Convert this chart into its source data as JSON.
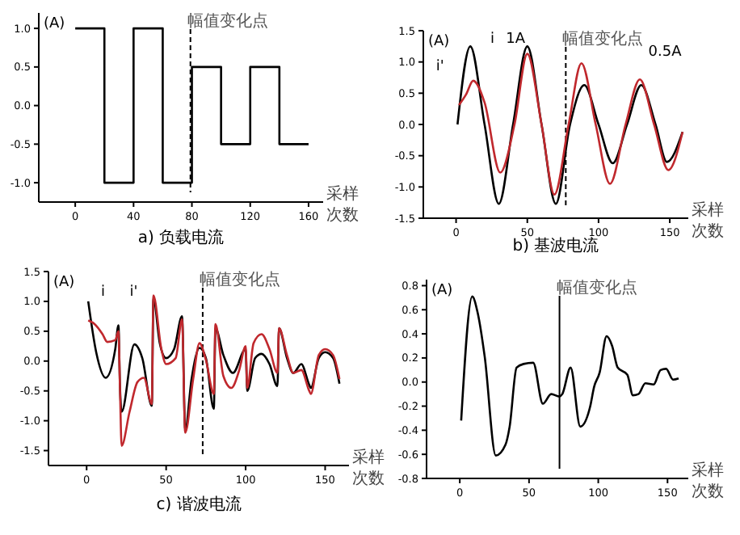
{
  "chart_data": [
    {
      "type": "step",
      "title": "a) 负载电流",
      "xlabel": "采样次数",
      "ylabel": "(A)",
      "xlim": [
        -25,
        170
      ],
      "ylim": [
        -1.25,
        1.2
      ],
      "xticks": [
        0,
        40,
        80,
        120,
        160
      ],
      "yticks": [
        {
          "value": 1,
          "label": "1.0"
        },
        {
          "value": 0.5,
          "label": "0.5"
        },
        {
          "value": 0,
          "label": "0.0"
        },
        {
          "value": -0.5,
          "label": "-0.5"
        },
        {
          "value": -1,
          "label": "-1.0"
        }
      ],
      "grid": false,
      "x": [
        0,
        20,
        40,
        60,
        80,
        100,
        120,
        140,
        160
      ],
      "series": [
        {
          "color": "#000000",
          "values": [
            1,
            -1,
            1,
            -1,
            0.5,
            -0.5,
            0.5,
            -0.5,
            -0.5
          ]
        }
      ],
      "ref_lines": [
        {
          "axis": "x",
          "value": 79,
          "label": "幅值变化点",
          "line_style": "dashed",
          "color": "#000000"
        }
      ]
    },
    {
      "type": "line",
      "title": "b) 基波电流",
      "xlabel": "采样次数",
      "ylabel": "(A)",
      "xlim": [
        -23,
        163
      ],
      "ylim": [
        -1.5,
        1.5
      ],
      "xticks": [
        0,
        50,
        100,
        150
      ],
      "yticks": [
        {
          "value": 1.5,
          "label": "1.5"
        },
        {
          "value": 1,
          "label": "1.0"
        },
        {
          "value": 0.5,
          "label": "0.5"
        },
        {
          "value": 0,
          "label": "0.0"
        },
        {
          "value": -0.5,
          "label": "-0.5"
        },
        {
          "value": -1,
          "label": "-1.0"
        },
        {
          "value": -1.5,
          "label": "-1.5"
        }
      ],
      "grid": false,
      "series": [
        {
          "color": "#000000",
          "x": [
            1,
            10,
            20,
            30,
            40,
            50,
            60,
            70,
            80,
            90,
            100,
            110,
            120,
            130,
            140,
            148,
            159
          ],
          "values": [
            0,
            1.25,
            0,
            -1.27,
            0,
            1.25,
            0,
            -1.27,
            0,
            0.63,
            0,
            -0.62,
            0,
            0.63,
            0,
            -0.6,
            -0.12
          ]
        },
        {
          "color": "#c0282d",
          "x": [
            2,
            7,
            12,
            20,
            31,
            41,
            50,
            60,
            69,
            79,
            88,
            98,
            108,
            119,
            129,
            139,
            149,
            159
          ],
          "values": [
            0.31,
            0.48,
            0.7,
            0.35,
            -0.77,
            0,
            1.13,
            0,
            -1.12,
            0,
            0.98,
            0,
            -0.95,
            0,
            0.72,
            0,
            -0.73,
            -0.12
          ]
        }
      ],
      "annotations": [
        "i",
        "1A",
        "0.5A",
        "i'"
      ],
      "ref_lines": [
        {
          "axis": "x",
          "value": 77,
          "label": "幅值变化点",
          "line_style": "dashed",
          "color": "#000000"
        }
      ]
    },
    {
      "type": "line",
      "title": "c) 谐波电流",
      "xlabel": "采样次数",
      "ylabel": "(A)",
      "xlim": [
        -24,
        165
      ],
      "ylim": [
        -1.75,
        1.5
      ],
      "xticks": [
        0,
        50,
        100,
        150
      ],
      "yticks": [
        {
          "value": 1.5,
          "label": "1.5"
        },
        {
          "value": 1,
          "label": "1.0"
        },
        {
          "value": 0.5,
          "label": "0.5"
        },
        {
          "value": 0,
          "label": "0.0"
        },
        {
          "value": -0.5,
          "label": "-0.5"
        },
        {
          "value": -1,
          "label": "-1.0"
        },
        {
          "value": -1.5,
          "label": "-1.5"
        }
      ],
      "grid": false,
      "series": [
        {
          "color": "#000000",
          "x": [
            1,
            6,
            12,
            18,
            20,
            21,
            22,
            30,
            35,
            41,
            42,
            46,
            50,
            55,
            60,
            62,
            66,
            71,
            75,
            80,
            81,
            86,
            92,
            100,
            101,
            106,
            110,
            115,
            120,
            121,
            126,
            130,
            135,
            140,
            141,
            146,
            150,
            155,
            159
          ],
          "values": [
            1.0,
            0.15,
            -0.28,
            0.2,
            0.6,
            -0.45,
            -0.85,
            0.28,
            0.05,
            -0.75,
            1.05,
            0.3,
            0.05,
            0.2,
            0.75,
            -1.15,
            -0.3,
            0.22,
            0.05,
            -0.8,
            0.55,
            0.1,
            -0.2,
            0.2,
            -0.5,
            0.05,
            0.12,
            -0.05,
            -0.42,
            0.55,
            0.05,
            -0.2,
            -0.05,
            -0.4,
            -0.45,
            0.05,
            0.15,
            0.05,
            -0.38
          ]
        },
        {
          "color": "#c0282d",
          "x": [
            1,
            5,
            10,
            13,
            18,
            20,
            21,
            22,
            27,
            32,
            36,
            41,
            42,
            47,
            50,
            56,
            60,
            62,
            67,
            71,
            75,
            80,
            81,
            86,
            91,
            96,
            100,
            101,
            105,
            110,
            115,
            120,
            121,
            126,
            130,
            135,
            140,
            141,
            146,
            150,
            155,
            159
          ],
          "values": [
            0.68,
            0.62,
            0.45,
            0.32,
            0.35,
            0.5,
            -0.5,
            -1.42,
            -0.85,
            -0.35,
            -0.28,
            -0.72,
            1.1,
            0.2,
            -0.05,
            0.05,
            0.7,
            -1.2,
            -0.3,
            0.3,
            0.02,
            -0.55,
            0.62,
            -0.25,
            -0.45,
            -0.15,
            0.25,
            -0.45,
            0.3,
            0.45,
            0.2,
            -0.2,
            0.55,
            0.1,
            -0.2,
            -0.15,
            -0.5,
            -0.55,
            0.1,
            0.2,
            0.1,
            -0.3
          ]
        }
      ],
      "annotations": [
        "i",
        "i'"
      ],
      "ref_lines": [
        {
          "axis": "x",
          "value": 73,
          "label": "幅值变化点",
          "line_style": "dashed",
          "color": "#000000"
        }
      ]
    },
    {
      "type": "line",
      "xlabel": "采样次数",
      "ylabel": "(A)",
      "xlim": [
        -24,
        165
      ],
      "ylim": [
        -0.8,
        0.85
      ],
      "xticks": [
        0,
        50,
        100,
        150
      ],
      "yticks": [
        {
          "value": 0.8,
          "label": "0.8"
        },
        {
          "value": 0.6,
          "label": "0.6"
        },
        {
          "value": 0.4,
          "label": "0.4"
        },
        {
          "value": 0.2,
          "label": "0.2"
        },
        {
          "value": 0,
          "label": "0.0"
        },
        {
          "value": -0.2,
          "label": "-0.2"
        },
        {
          "value": -0.4,
          "label": "-0.4"
        },
        {
          "value": -0.6,
          "label": "-0.6"
        },
        {
          "value": -0.8,
          "label": "-0.8"
        }
      ],
      "grid": false,
      "series": [
        {
          "color": "#000000",
          "x": [
            1,
            9,
            13,
            18,
            26,
            33,
            36,
            41,
            46,
            53,
            60,
            66,
            72,
            74,
            80,
            87,
            94,
            97,
            101,
            106,
            110,
            114,
            121,
            125,
            129,
            134,
            140,
            145,
            149,
            154,
            158
          ],
          "values": [
            -0.32,
            0.71,
            0.57,
            0.21,
            -0.61,
            -0.52,
            -0.37,
            0.12,
            0.15,
            0.16,
            -0.18,
            -0.1,
            -0.12,
            -0.1,
            0.12,
            -0.37,
            -0.21,
            -0.04,
            0.08,
            0.38,
            0.3,
            0.12,
            0.06,
            -0.11,
            -0.1,
            -0.01,
            -0.02,
            0.1,
            0.11,
            0.02,
            0.03
          ]
        }
      ],
      "ref_lines": [
        {
          "axis": "x",
          "value": 72,
          "label": "幅值变化点",
          "line_style": "solid",
          "color": "#000000"
        }
      ]
    }
  ]
}
